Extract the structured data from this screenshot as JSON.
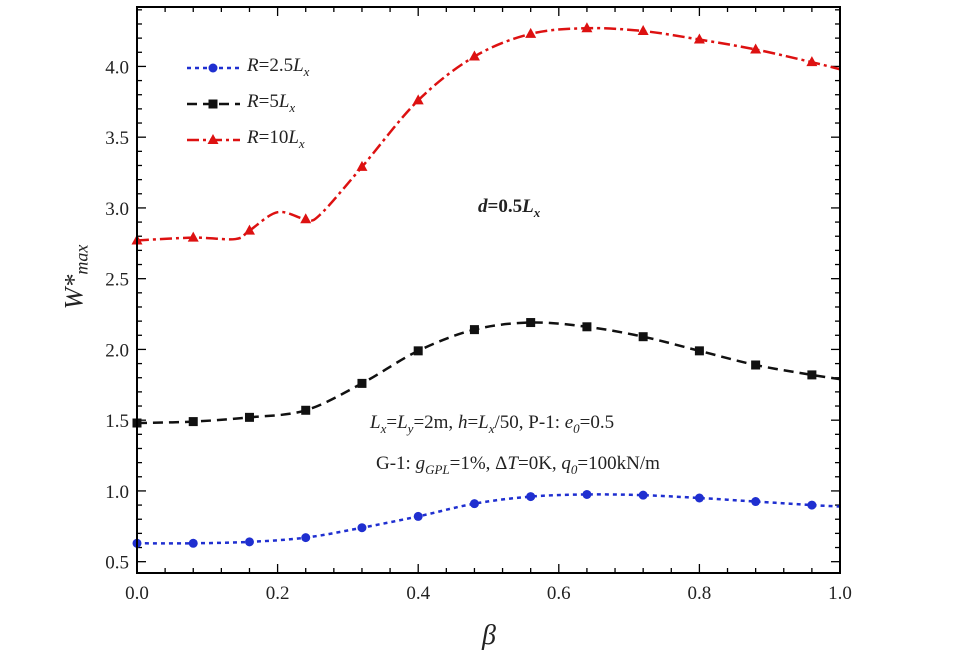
{
  "chart_data": {
    "type": "line",
    "xlabel": "β",
    "ylabel": "W*max",
    "xlim": [
      0,
      1
    ],
    "ylim": [
      0.42,
      4.42
    ],
    "xticks": [
      "0.0",
      "0.2",
      "0.4",
      "0.6",
      "0.8",
      "1.0"
    ],
    "yticks": [
      "0.5",
      "1.0",
      "1.5",
      "2.0",
      "2.5",
      "3.0",
      "3.5",
      "4.0"
    ],
    "legend_position": "top-left",
    "x": [
      0,
      0.08,
      0.16,
      0.24,
      0.32,
      0.4,
      0.48,
      0.56,
      0.64,
      0.72,
      0.8,
      0.88,
      0.96,
      1.0
    ],
    "series": [
      {
        "name": "R=2.5Lx",
        "legend_main": "R",
        "legend_mid": "=2.5",
        "legend_L": "L",
        "legend_sub": "x",
        "color": "#1f2fd0",
        "marker": "circle",
        "dash": "4,4",
        "values": [
          0.63,
          0.63,
          0.64,
          0.67,
          0.74,
          0.82,
          0.91,
          0.96,
          0.975,
          0.97,
          0.95,
          0.925,
          0.9,
          0.89
        ]
      },
      {
        "name": "R=5Lx",
        "legend_main": "R",
        "legend_mid": "=5",
        "legend_L": "L",
        "legend_sub": "x",
        "color": "#111111",
        "marker": "square",
        "dash": "10,6",
        "values": [
          1.48,
          1.49,
          1.52,
          1.57,
          1.76,
          1.99,
          2.14,
          2.19,
          2.16,
          2.09,
          1.99,
          1.89,
          1.82,
          1.79
        ]
      },
      {
        "name": "R=10Lx",
        "legend_main": "R",
        "legend_mid": "=10",
        "legend_L": "L",
        "legend_sub": "x",
        "color": "#dd1111",
        "marker": "triangle",
        "dash": "12,4,3,4",
        "values": [
          2.77,
          2.79,
          2.84,
          2.92,
          3.29,
          3.76,
          4.07,
          4.23,
          4.27,
          4.25,
          4.19,
          4.12,
          4.03,
          3.98
        ],
        "line_x": [
          0,
          0.08,
          0.14,
          0.16,
          0.2,
          0.24,
          0.26,
          0.32,
          0.4,
          0.48,
          0.56,
          0.64,
          0.72,
          0.8,
          0.88,
          0.96,
          1.0
        ],
        "line_values": [
          2.77,
          2.79,
          2.78,
          2.84,
          2.97,
          2.92,
          2.95,
          3.29,
          3.76,
          4.07,
          4.23,
          4.27,
          4.25,
          4.19,
          4.12,
          4.03,
          3.98
        ]
      }
    ],
    "annotations": {
      "d_label": {
        "d": "d",
        "eq": "=0.5",
        "L": "L",
        "sub": "x"
      },
      "line1": {
        "Lx": "L",
        "Lx_sub": "x",
        "eq1": "=",
        "Ly": "L",
        "Ly_sub": "y",
        "rest1": "=2m, ",
        "h": "h",
        "eq2": "=",
        "L2": "L",
        "L2_sub": "x",
        "rest2": "/50, P-1: ",
        "e": "e",
        "e_sub": "0",
        "rest3": "=0.5"
      },
      "line2": {
        "pre": "G-1: ",
        "g": "g",
        "g_sub": "GPL",
        "mid": "=1%, Δ",
        "T": "T",
        "mid2": "=0K, ",
        "q": "q",
        "q_sub": "0",
        "post": "=100kN/m"
      }
    },
    "ylabel_parts": {
      "W": "W*",
      "sub": "max"
    }
  }
}
